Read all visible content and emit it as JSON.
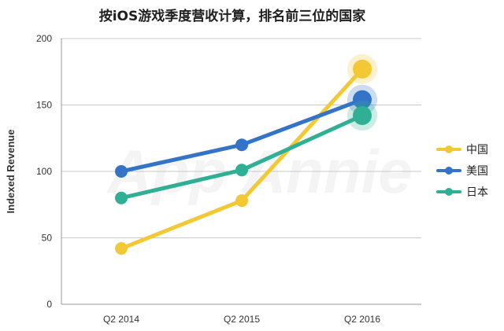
{
  "chart_data": {
    "type": "line",
    "title": "按iOS游戏季度营收计算，排名前三位的国家",
    "xlabel": "",
    "ylabel": "Indexed Revenue",
    "categories": [
      "Q2 2014",
      "Q2 2015",
      "Q2 2016"
    ],
    "ylim": [
      0,
      200
    ],
    "yticks": [
      0,
      50,
      100,
      150,
      200
    ],
    "grid": true,
    "legend_position": "right",
    "watermark": "App Annie",
    "series": [
      {
        "name": "中国",
        "color": "#f2c934",
        "values": [
          42,
          78,
          177
        ]
      },
      {
        "name": "美国",
        "color": "#3474c8",
        "values": [
          100,
          120,
          154
        ]
      },
      {
        "name": "日本",
        "color": "#2fb095",
        "values": [
          80,
          101,
          142
        ]
      }
    ]
  }
}
